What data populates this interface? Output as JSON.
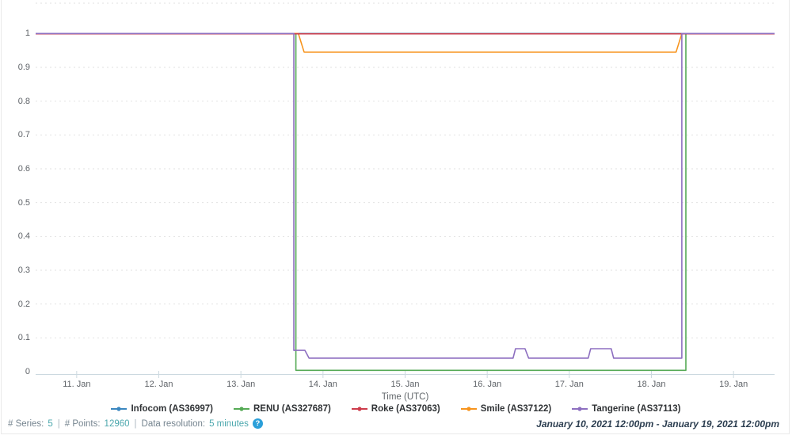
{
  "chart": {
    "x_axis": {
      "title": "Time (UTC)",
      "ticks": [
        {
          "day": 0.5,
          "label": "11. Jan"
        },
        {
          "day": 1.5,
          "label": "12. Jan"
        },
        {
          "day": 2.5,
          "label": "13. Jan"
        },
        {
          "day": 3.5,
          "label": "14. Jan"
        },
        {
          "day": 4.5,
          "label": "15. Jan"
        },
        {
          "day": 5.5,
          "label": "16. Jan"
        },
        {
          "day": 6.5,
          "label": "17. Jan"
        },
        {
          "day": 7.5,
          "label": "18. Jan"
        },
        {
          "day": 8.5,
          "label": "19. Jan"
        }
      ]
    },
    "y_axis": {
      "ticks": [
        {
          "value": 0,
          "label": "0"
        },
        {
          "value": 0.1,
          "label": "0.1"
        },
        {
          "value": 0.2,
          "label": "0.2"
        },
        {
          "value": 0.3,
          "label": "0.3"
        },
        {
          "value": 0.4,
          "label": "0.4"
        },
        {
          "value": 0.5,
          "label": "0.5"
        },
        {
          "value": 0.6,
          "label": "0.6"
        },
        {
          "value": 0.7,
          "label": "0.7"
        },
        {
          "value": 0.8,
          "label": "0.8"
        },
        {
          "value": 0.9,
          "label": "0.9"
        },
        {
          "value": 1,
          "label": "1"
        }
      ]
    }
  },
  "chart_data": {
    "type": "line",
    "title": "",
    "xlabel": "Time (UTC)",
    "ylabel": "",
    "x_unit": "days since 2021-01-10 12:00pm UTC",
    "x_range_days": [
      0,
      9
    ],
    "ylim": [
      0,
      1
    ],
    "grid": "horizontal-dashed",
    "legend_position": "bottom",
    "series": [
      {
        "name": "Infocom (AS36997)",
        "color": "#3b87c0",
        "points": [
          [
            0,
            1
          ],
          [
            9,
            1
          ]
        ]
      },
      {
        "name": "RENU (AS327687)",
        "color": "#55aa55",
        "points": [
          [
            0,
            1
          ],
          [
            3.17,
            1
          ],
          [
            3.17,
            0.004
          ],
          [
            7.92,
            0.004
          ],
          [
            7.92,
            1
          ],
          [
            9,
            1
          ]
        ]
      },
      {
        "name": "Roke (AS37063)",
        "color": "#cd3c4b",
        "points": [
          [
            0,
            0.999
          ],
          [
            9,
            0.999
          ]
        ]
      },
      {
        "name": "Smile (AS37122)",
        "color": "#f7941d",
        "points": [
          [
            0,
            1
          ],
          [
            3.2,
            1
          ],
          [
            3.27,
            0.945
          ],
          [
            7.8,
            0.945
          ],
          [
            7.87,
            1
          ],
          [
            9,
            1
          ]
        ]
      },
      {
        "name": "Tangerine (AS37113)",
        "color": "#8d6fc0",
        "points": [
          [
            0,
            1
          ],
          [
            3.145,
            1
          ],
          [
            3.145,
            0.063
          ],
          [
            3.28,
            0.063
          ],
          [
            3.33,
            0.04
          ],
          [
            5.815,
            0.04
          ],
          [
            5.845,
            0.068
          ],
          [
            5.96,
            0.068
          ],
          [
            6.005,
            0.04
          ],
          [
            6.73,
            0.04
          ],
          [
            6.76,
            0.068
          ],
          [
            7.01,
            0.068
          ],
          [
            7.04,
            0.04
          ],
          [
            7.87,
            0.04
          ],
          [
            7.87,
            1
          ],
          [
            9,
            1
          ]
        ]
      }
    ],
    "draw_order": [
      0,
      1,
      3,
      2,
      4
    ]
  },
  "footer": {
    "series_label": "# Series:",
    "series_value": "5",
    "points_label": "# Points:",
    "points_value": "12960",
    "resolution_label": "Data resolution:",
    "resolution_value": "5 minutes",
    "separator": "|",
    "help_icon": "?",
    "time_range": "January 10, 2021 12:00pm - January 19, 2021 12:00pm"
  },
  "colors": {
    "grid": "#e2e2e2",
    "axis": "#ccd9e0",
    "tick_text": "#5f6368",
    "help_icon_bg": "#2b9fd9",
    "time_range_text": "#2c3e50"
  }
}
